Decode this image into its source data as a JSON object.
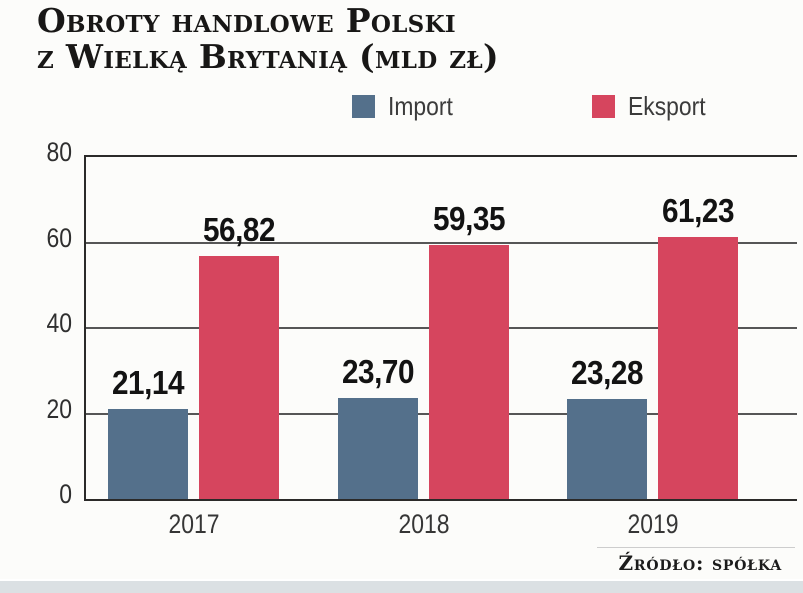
{
  "title": {
    "line1": "Obroty handlowe Polski",
    "line2": "z Wielką Brytanią (mld zł)"
  },
  "source": "Źródło: spółka",
  "chart_data": {
    "type": "bar",
    "title": "Obroty handlowe Polski z Wielką Brytanią (mld zł)",
    "unit": "mld zł",
    "categories": [
      "2017",
      "2018",
      "2019"
    ],
    "series": [
      {
        "name": "Import",
        "color": "#54708b",
        "values": [
          21.14,
          23.7,
          23.28
        ],
        "labels": [
          "21,14",
          "23,70",
          "23,28"
        ]
      },
      {
        "name": "Eksport",
        "color": "#d6455e",
        "values": [
          56.82,
          59.35,
          61.23
        ],
        "labels": [
          "56,82",
          "59,35",
          "61,23"
        ]
      }
    ],
    "ylim": [
      0,
      80
    ],
    "yticks": [
      0,
      20,
      40,
      60,
      80
    ],
    "grid": true,
    "legend_position": "top",
    "source": "Źródło: spółka"
  }
}
